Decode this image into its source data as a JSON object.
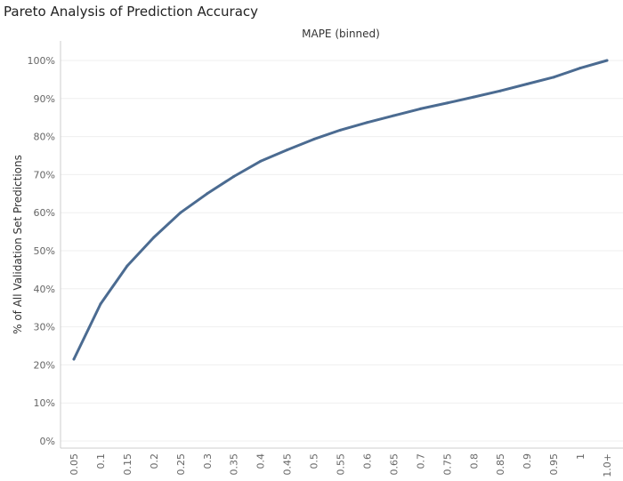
{
  "title": "Pareto Analysis of Prediction Accuracy",
  "chart_data": {
    "type": "line",
    "title": "Pareto Analysis of Prediction Accuracy",
    "xlabel": "MAPE (binned)",
    "ylabel": "% of All Validation Set Predictions",
    "categories": [
      "0.05",
      "0.1",
      "0.15",
      "0.2",
      "0.25",
      "0.3",
      "0.35",
      "0.4",
      "0.45",
      "0.5",
      "0.55",
      "0.6",
      "0.65",
      "0.7",
      "0.75",
      "0.8",
      "0.85",
      "0.9",
      "0.95",
      "1",
      "1.0+"
    ],
    "series": [
      {
        "values": [
          21.5,
          36.0,
          46.0,
          53.5,
          60.0,
          65.0,
          69.5,
          73.5,
          76.5,
          79.3,
          81.7,
          83.7,
          85.5,
          87.3,
          88.8,
          90.4,
          92.0,
          93.8,
          95.6,
          98.0,
          100.0
        ],
        "color": "#4b6b91"
      }
    ],
    "yticks": [
      "0%",
      "10%",
      "20%",
      "30%",
      "40%",
      "50%",
      "60%",
      "70%",
      "80%",
      "90%",
      "100%"
    ],
    "ylim": [
      0,
      105
    ],
    "grid": true,
    "legend": "none"
  }
}
